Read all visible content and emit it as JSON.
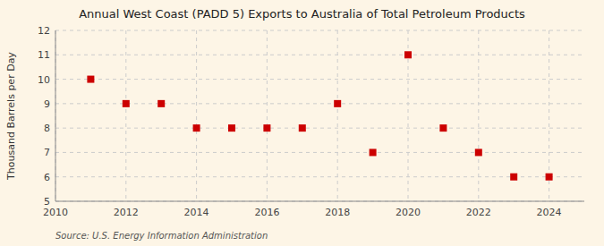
{
  "chart_data": {
    "type": "scatter",
    "title": "Annual West Coast (PADD 5) Exports to Australia of Total Petroleum Products",
    "ylabel": "Thousand Barrels per Day",
    "source": "Source: U.S. Energy Information Administration",
    "x": [
      2011,
      2012,
      2013,
      2014,
      2015,
      2016,
      2017,
      2018,
      2019,
      2020,
      2021,
      2022,
      2023,
      2024
    ],
    "values": [
      10,
      9,
      9,
      8,
      8,
      8,
      8,
      9,
      7,
      11,
      8,
      7,
      6,
      6
    ],
    "xlim": [
      2010,
      2025
    ],
    "ylim": [
      5,
      12
    ],
    "xticks": [
      2010,
      2012,
      2014,
      2016,
      2018,
      2020,
      2022,
      2024
    ],
    "yticks": [
      5,
      6,
      7,
      8,
      9,
      10,
      11,
      12
    ],
    "color": "#cc0000",
    "marker": "square",
    "grid": true
  }
}
